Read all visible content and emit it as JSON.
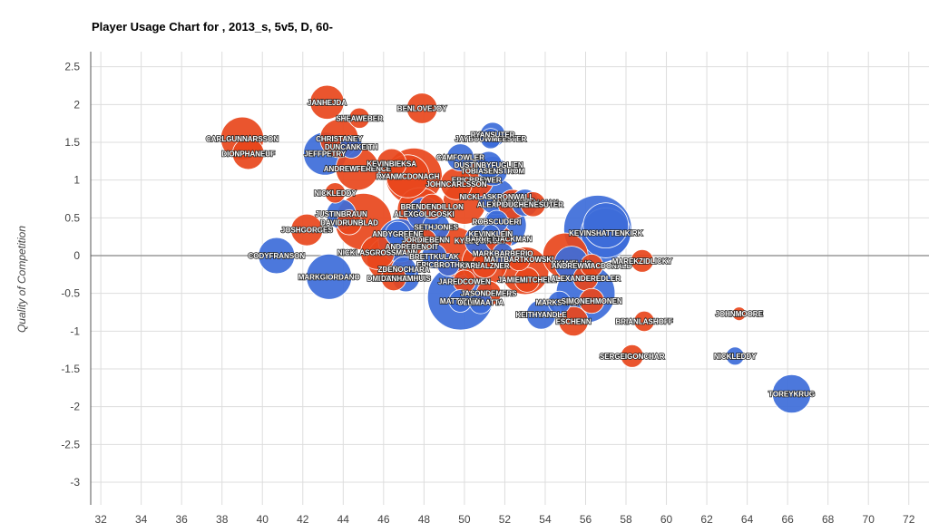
{
  "chart_data": {
    "type": "bubble",
    "title": "Player Usage Chart for , 2013_s, 5v5, D, 60-",
    "xlabel": "",
    "ylabel": "Quality of Competition",
    "xlim": [
      31.5,
      73
    ],
    "ylim": [
      -3.3,
      2.7
    ],
    "xticks": [
      32,
      34,
      36,
      38,
      40,
      42,
      44,
      46,
      48,
      50,
      52,
      54,
      56,
      58,
      60,
      62,
      64,
      66,
      68,
      70,
      72
    ],
    "yticks": [
      2.5,
      2,
      1.5,
      1,
      0.5,
      0,
      -0.5,
      -1,
      -1.5,
      -2,
      -2.5,
      -3
    ],
    "colors": {
      "blue": "#3d6cd9",
      "red": "#e8461c"
    },
    "points": [
      {
        "label": "",
        "x": 56.6,
        "y": 0.35,
        "r": 3.0,
        "color": "blue"
      },
      {
        "label": "",
        "x": 49.8,
        "y": -0.55,
        "r": 2.9,
        "color": "blue"
      },
      {
        "label": "",
        "x": 56.0,
        "y": -0.5,
        "r": 2.6,
        "color": "blue"
      },
      {
        "label": "",
        "x": 47.5,
        "y": 1.05,
        "r": 2.5,
        "color": "red"
      },
      {
        "label": "",
        "x": 45.0,
        "y": 0.45,
        "r": 2.5,
        "color": "red"
      },
      {
        "label": "KEVINSHATTENKIRK",
        "x": 57.0,
        "y": 0.3,
        "r": 2.2,
        "color": "blue"
      },
      {
        "label": "",
        "x": 57.0,
        "y": 0.4,
        "r": 2.0,
        "color": "blue"
      },
      {
        "label": "",
        "x": 49.5,
        "y": 0.05,
        "r": 2.2,
        "color": "red"
      },
      {
        "label": "",
        "x": 53.0,
        "y": -0.2,
        "r": 2.1,
        "color": "red"
      },
      {
        "label": "",
        "x": 55.0,
        "y": 0.0,
        "r": 2.0,
        "color": "red"
      },
      {
        "label": "",
        "x": 51.0,
        "y": -0.1,
        "r": 2.0,
        "color": "red"
      },
      {
        "label": "",
        "x": 46.3,
        "y": -0.05,
        "r": 2.0,
        "color": "red"
      },
      {
        "label": "",
        "x": 47.8,
        "y": 0.6,
        "r": 2.0,
        "color": "red"
      },
      {
        "label": "",
        "x": 52.0,
        "y": 0.4,
        "r": 1.9,
        "color": "blue"
      },
      {
        "label": "",
        "x": 50.0,
        "y": 0.7,
        "r": 1.9,
        "color": "red"
      },
      {
        "label": "",
        "x": 46.8,
        "y": 0.2,
        "r": 1.9,
        "color": "blue"
      },
      {
        "label": "CHRISTANEY",
        "x": 43.8,
        "y": 1.55,
        "r": 1.7,
        "color": "red"
      },
      {
        "label": "JEFFPETRY",
        "x": 43.1,
        "y": 1.35,
        "r": 1.9,
        "color": "blue"
      },
      {
        "label": "ANDREWFERENCE",
        "x": 44.7,
        "y": 1.15,
        "r": 1.9,
        "color": "red"
      },
      {
        "label": "RYANMCDONAGH",
        "x": 47.2,
        "y": 1.05,
        "r": 1.9,
        "color": "red"
      },
      {
        "label": "ERICBREWER",
        "x": 50.6,
        "y": 1.0,
        "r": 1.5,
        "color": "red"
      },
      {
        "label": "CARLGUNNARSSON",
        "x": 39.0,
        "y": 1.55,
        "r": 1.9,
        "color": "red"
      },
      {
        "label": "DIONPHANEUF",
        "x": 39.3,
        "y": 1.35,
        "r": 1.4,
        "color": "red"
      },
      {
        "label": "JANHEJDA",
        "x": 43.2,
        "y": 2.03,
        "r": 1.5,
        "color": "red"
      },
      {
        "label": "SHEAWEBER",
        "x": 44.8,
        "y": 1.82,
        "r": 0.9,
        "color": "red"
      },
      {
        "label": "BENLOVEJOY",
        "x": 47.9,
        "y": 1.95,
        "r": 1.35,
        "color": "red"
      },
      {
        "label": "DUNCANKEITH",
        "x": 44.4,
        "y": 1.44,
        "r": 1.0,
        "color": "blue"
      },
      {
        "label": "KEVINBIEKSA",
        "x": 46.4,
        "y": 1.22,
        "r": 1.3,
        "color": "red"
      },
      {
        "label": "CAMFOWLER",
        "x": 49.8,
        "y": 1.3,
        "r": 1.2,
        "color": "blue"
      },
      {
        "label": "JAYBOUWMEESTER",
        "x": 51.3,
        "y": 1.55,
        "r": 0.9,
        "color": "blue"
      },
      {
        "label": "RYANSUTER",
        "x": 51.4,
        "y": 1.6,
        "r": 1.1,
        "color": "blue"
      },
      {
        "label": "TOBIASENSTROM",
        "x": 51.4,
        "y": 1.12,
        "r": 1.3,
        "color": "blue"
      },
      {
        "label": "DUSTINBYFUGLIEN",
        "x": 51.2,
        "y": 1.2,
        "r": 1.2,
        "color": "blue"
      },
      {
        "label": "NICKLASKRONWALL",
        "x": 51.6,
        "y": 0.78,
        "r": 1.6,
        "color": "blue"
      },
      {
        "label": "ANTONSTRALMAN",
        "x": 53.0,
        "y": 0.7,
        "r": 1.2,
        "color": "blue"
      },
      {
        "label": "ALEXPIETRANGELO",
        "x": 52.4,
        "y": 0.68,
        "r": 1.3,
        "color": "red"
      },
      {
        "label": "DUCHENESUTER",
        "x": 53.4,
        "y": 0.68,
        "r": 1.1,
        "color": "red"
      },
      {
        "label": "ALEXGOLIGOSKI",
        "x": 48.0,
        "y": 0.55,
        "r": 1.5,
        "color": "blue"
      },
      {
        "label": "JOHNCARLSSON",
        "x": 49.6,
        "y": 0.95,
        "r": 1.4,
        "color": "red"
      },
      {
        "label": "NICKLEDDY",
        "x": 43.6,
        "y": 0.83,
        "r": 0.9,
        "color": "red"
      },
      {
        "label": "JUSTINBRAUN",
        "x": 43.9,
        "y": 0.55,
        "r": 1.3,
        "color": "blue"
      },
      {
        "label": "DAVIDRUNBLAD",
        "x": 44.3,
        "y": 0.44,
        "r": 1.1,
        "color": "red"
      },
      {
        "label": "BRENDENDILLON",
        "x": 48.4,
        "y": 0.65,
        "r": 1.1,
        "color": "red"
      },
      {
        "label": "JOSHGORGES",
        "x": 42.2,
        "y": 0.34,
        "r": 1.4,
        "color": "red"
      },
      {
        "label": "ANDYGREENE",
        "x": 46.7,
        "y": 0.29,
        "r": 1.1,
        "color": "blue"
      },
      {
        "label": "SETHJONES",
        "x": 48.6,
        "y": 0.38,
        "r": 1.2,
        "color": "blue"
      },
      {
        "label": "JORDIEBENN",
        "x": 48.1,
        "y": 0.21,
        "r": 0.9,
        "color": "red"
      },
      {
        "label": "ANDREBENOIT",
        "x": 47.4,
        "y": 0.12,
        "r": 0.9,
        "color": "red"
      },
      {
        "label": "KYLEQUINCEY",
        "x": 50.8,
        "y": 0.2,
        "r": 1.4,
        "color": "blue"
      },
      {
        "label": "BARRETJACKMAN",
        "x": 51.7,
        "y": 0.22,
        "r": 1.2,
        "color": "red"
      },
      {
        "label": "ROBSCUDERI",
        "x": 51.6,
        "y": 0.45,
        "r": 1.0,
        "color": "blue"
      },
      {
        "label": "KEVINKLEIN",
        "x": 51.3,
        "y": 0.29,
        "r": 0.8,
        "color": "blue"
      },
      {
        "label": "NICKLASGROSSMANN",
        "x": 45.7,
        "y": 0.04,
        "r": 1.5,
        "color": "red"
      },
      {
        "label": "CODYFRANSON",
        "x": 40.7,
        "y": 0.0,
        "r": 1.6,
        "color": "blue"
      },
      {
        "label": "BRETTKULAK",
        "x": 48.5,
        "y": -0.01,
        "r": 1.1,
        "color": "blue"
      },
      {
        "label": "MARKBARBERIO",
        "x": 51.9,
        "y": 0.03,
        "r": 0.9,
        "color": "blue"
      },
      {
        "label": "MATTBARTKOWSKI",
        "x": 52.7,
        "y": -0.05,
        "r": 1.0,
        "color": "red"
      },
      {
        "label": "RYANELLIS",
        "x": 55.3,
        "y": -0.1,
        "r": 1.5,
        "color": "blue"
      },
      {
        "label": "ANDREWMACDONALD",
        "x": 56.3,
        "y": -0.13,
        "r": 1.0,
        "color": "red"
      },
      {
        "label": "MAREKZIDLICKY",
        "x": 58.8,
        "y": -0.07,
        "r": 1.0,
        "color": "red"
      },
      {
        "label": "ERICBROTHEREN",
        "x": 49.2,
        "y": -0.12,
        "r": 1.0,
        "color": "blue"
      },
      {
        "label": "KARLALZNER",
        "x": 51.0,
        "y": -0.13,
        "r": 1.1,
        "color": "red"
      },
      {
        "label": "ZDENOCHARA",
        "x": 47.0,
        "y": -0.18,
        "r": 1.1,
        "color": "blue"
      },
      {
        "label": "MARKGIORDANO",
        "x": 43.3,
        "y": -0.28,
        "r": 2.0,
        "color": "blue"
      },
      {
        "label": "DMITRYORLOV",
        "x": 46.5,
        "y": -0.3,
        "r": 1.1,
        "color": "red"
      },
      {
        "label": "DANHAMHUIS",
        "x": 47.1,
        "y": -0.3,
        "r": 1.2,
        "color": "blue"
      },
      {
        "label": "JAREDCOWEN",
        "x": 50.0,
        "y": -0.34,
        "r": 1.0,
        "color": "red"
      },
      {
        "label": "JAMIEMITCHELL",
        "x": 53.1,
        "y": -0.32,
        "r": 1.1,
        "color": "red"
      },
      {
        "label": "ALEXANDEREDLER",
        "x": 56.0,
        "y": -0.3,
        "r": 1.1,
        "color": "red"
      },
      {
        "label": "JASONDEMERS",
        "x": 51.2,
        "y": -0.5,
        "r": 1.1,
        "color": "red"
      },
      {
        "label": "MATTIRWIN",
        "x": 49.8,
        "y": -0.6,
        "r": 1.0,
        "color": "blue"
      },
      {
        "label": "OLLIMAATTA",
        "x": 50.8,
        "y": -0.62,
        "r": 1.0,
        "color": "blue"
      },
      {
        "label": "MARKSTREIT",
        "x": 54.7,
        "y": -0.62,
        "r": 1.0,
        "color": "blue"
      },
      {
        "label": "SIMONEHMONEN",
        "x": 56.3,
        "y": -0.6,
        "r": 1.1,
        "color": "red"
      },
      {
        "label": "KEITHYANDLE",
        "x": 53.8,
        "y": -0.78,
        "r": 1.3,
        "color": "blue"
      },
      {
        "label": "ESCHENN",
        "x": 55.4,
        "y": -0.87,
        "r": 1.3,
        "color": "red"
      },
      {
        "label": "BRIANLASHOFF",
        "x": 58.9,
        "y": -0.87,
        "r": 0.9,
        "color": "red"
      },
      {
        "label": "JOHNMOORE",
        "x": 63.6,
        "y": -0.77,
        "r": 0.6,
        "color": "red"
      },
      {
        "label": "SERGEIGONCHAR",
        "x": 58.3,
        "y": -1.33,
        "r": 1.0,
        "color": "red"
      },
      {
        "label": "NICKLEDDY",
        "x": 63.4,
        "y": -1.33,
        "r": 0.8,
        "color": "blue"
      },
      {
        "label": "TOREYKRUG",
        "x": 66.2,
        "y": -1.83,
        "r": 1.7,
        "color": "blue"
      }
    ]
  }
}
